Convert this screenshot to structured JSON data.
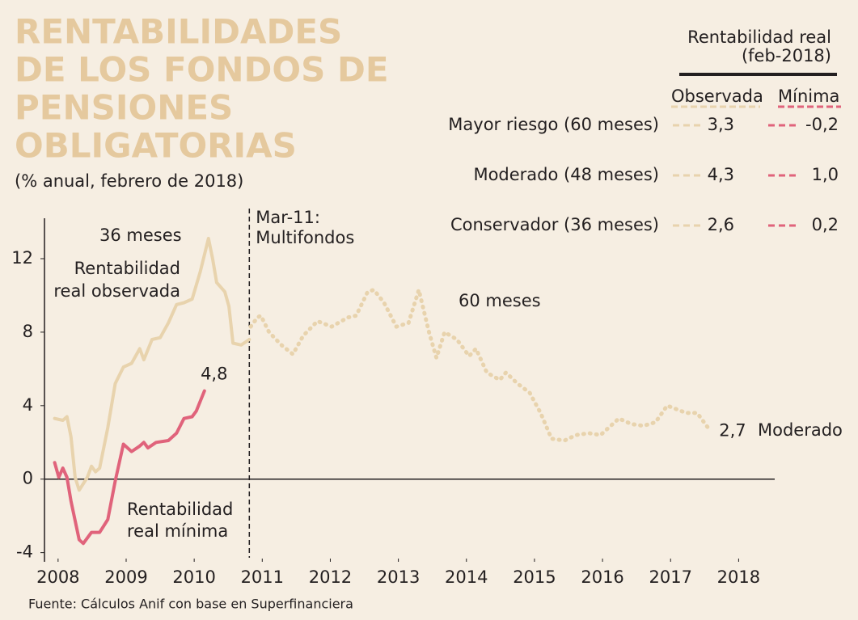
{
  "chart_data": {
    "type": "line",
    "title": [
      "RENTABILIDADES",
      "DE LOS FONDOS DE",
      "PENSIONES",
      "OBLIGATORIAS"
    ],
    "subtitle": "(% anual, febrero de 2018)",
    "source": "Fuente: Cálculos Anif con base en Superfinanciera",
    "xlim": [
      2007.8,
      2018.53
    ],
    "ylim": [
      -4.5,
      14.2
    ],
    "xticks": [
      2008,
      2009,
      2010,
      2011,
      2012,
      2013,
      2014,
      2015,
      2016,
      2017,
      2018
    ],
    "yticks": [
      12,
      8,
      4,
      0,
      -4
    ],
    "series": [
      {
        "color": "#e8d3ad",
        "style": "solid",
        "x": [
          2007.95,
          2008.07,
          2008.13,
          2008.19,
          2008.25,
          2008.31,
          2008.43,
          2008.49,
          2008.55,
          2008.61,
          2008.73,
          2008.84,
          2008.96,
          2009.08,
          2009.2,
          2009.26,
          2009.38,
          2009.5,
          2009.62,
          2009.74,
          2009.85,
          2009.97,
          2010.09,
          2010.21,
          2010.27,
          2010.33,
          2010.45,
          2010.51,
          2010.57,
          2010.69,
          2010.81
        ],
        "values": [
          3.3,
          3.2,
          3.4,
          2.3,
          0.1,
          -0.6,
          0.1,
          0.7,
          0.4,
          0.6,
          2.8,
          5.2,
          6.1,
          6.3,
          7.1,
          6.5,
          7.6,
          7.7,
          8.5,
          9.5,
          9.6,
          9.8,
          11.3,
          13.1,
          12.0,
          10.7,
          10.2,
          9.4,
          7.4,
          7.3,
          7.6
        ]
      },
      {
        "color": "#e8d3ad",
        "style": "dotted",
        "end_label": "2,7",
        "x": [
          2010.83,
          2010.93,
          2010.98,
          2011.1,
          2011.28,
          2011.45,
          2011.6,
          2011.81,
          2012.02,
          2012.26,
          2012.38,
          2012.55,
          2012.64,
          2012.79,
          2012.97,
          2013.15,
          2013.3,
          2013.45,
          2013.56,
          2013.68,
          2013.86,
          2014.04,
          2014.14,
          2014.3,
          2014.49,
          2014.58,
          2014.75,
          2014.93,
          2015.09,
          2015.25,
          2015.44,
          2015.61,
          2015.8,
          2015.97,
          2016.24,
          2016.42,
          2016.6,
          2016.78,
          2016.95,
          2017.23,
          2017.39,
          2017.57
        ],
        "values": [
          8.3,
          8.8,
          8.9,
          8.0,
          7.3,
          6.8,
          7.8,
          8.6,
          8.3,
          8.8,
          8.9,
          10.2,
          10.3,
          9.6,
          8.3,
          8.5,
          10.3,
          8.0,
          6.6,
          8.0,
          7.6,
          6.7,
          7.1,
          5.8,
          5.4,
          5.8,
          5.2,
          4.7,
          3.6,
          2.2,
          2.1,
          2.4,
          2.5,
          2.4,
          3.3,
          3.0,
          2.9,
          3.1,
          4.0,
          3.6,
          3.6,
          2.7
        ]
      },
      {
        "color": "#e0637b",
        "style": "solid",
        "end_label": "4,8",
        "x": [
          2007.95,
          2008.01,
          2008.07,
          2008.13,
          2008.19,
          2008.31,
          2008.37,
          2008.49,
          2008.61,
          2008.73,
          2008.84,
          2008.96,
          2009.08,
          2009.2,
          2009.26,
          2009.32,
          2009.44,
          2009.62,
          2009.74,
          2009.85,
          2009.97,
          2010.03,
          2010.15
        ],
        "values": [
          0.9,
          0.1,
          0.6,
          0.1,
          -1.2,
          -3.3,
          -3.5,
          -2.9,
          -2.9,
          -2.2,
          -0.1,
          1.9,
          1.5,
          1.8,
          2.0,
          1.7,
          2.0,
          2.1,
          2.5,
          3.3,
          3.4,
          3.7,
          4.8
        ]
      }
    ],
    "vline": {
      "x": 2010.81,
      "label": [
        "Mar-11:",
        "Multifondos"
      ]
    },
    "annotations": {
      "observed_period": "36 meses",
      "observed": [
        "Rentabilidad",
        "real observada"
      ],
      "long_period": "60 meses",
      "minimum": [
        "Rentabilidad",
        "real mínima"
      ],
      "fund": "Moderado"
    },
    "legend_table": {
      "title": [
        "Rentabilidad real",
        "(feb-2018)"
      ],
      "columns": [
        "Observada",
        "Mínima"
      ],
      "rows": [
        [
          "Mayor riesgo (60 meses)",
          "3,3",
          "-0,2"
        ],
        [
          "Moderado (48 meses)",
          "4,3",
          "1,0"
        ],
        [
          "Conservador (36 meses)",
          "2,6",
          "0,2"
        ]
      ]
    }
  }
}
